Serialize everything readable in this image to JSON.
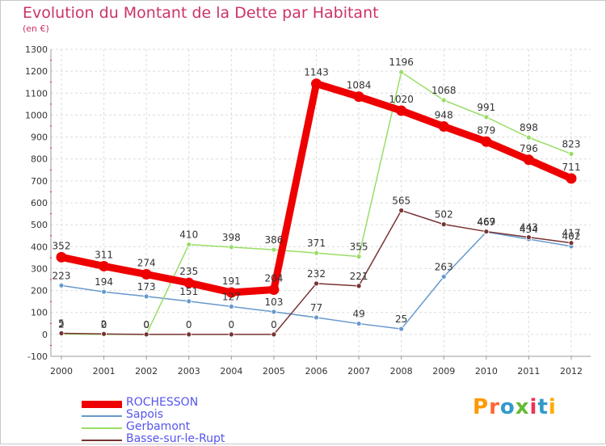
{
  "chart_data": {
    "type": "line",
    "title": "Evolution du Montant de la Dette par Habitant",
    "subtitle": "(en €)",
    "xlabel": "",
    "ylabel": "",
    "ylim": [
      -100,
      1300
    ],
    "yticks": [
      -100,
      0,
      100,
      200,
      300,
      400,
      500,
      600,
      700,
      800,
      900,
      1000,
      1100,
      1200,
      1300
    ],
    "x": [
      "2000",
      "2001",
      "2002",
      "2003",
      "2004",
      "2005",
      "2006",
      "2007",
      "2008",
      "2009",
      "2010",
      "2011",
      "2012"
    ],
    "grid": true,
    "legend_position": "bottom-left",
    "series": [
      {
        "name": "ROCHESSON",
        "color": "#ee0000",
        "emphasis": true,
        "values": [
          352,
          311,
          274,
          235,
          191,
          204,
          1143,
          1084,
          1020,
          948,
          879,
          796,
          711
        ]
      },
      {
        "name": "Sapois",
        "color": "#6699cc",
        "emphasis": false,
        "values": [
          223,
          194,
          173,
          151,
          127,
          103,
          77,
          49,
          25,
          263,
          467,
          434,
          402
        ]
      },
      {
        "name": "Gerbamont",
        "color": "#99dd66",
        "emphasis": false,
        "values": [
          2,
          0,
          0,
          410,
          398,
          386,
          371,
          355,
          1196,
          1068,
          991,
          898,
          823
        ]
      },
      {
        "name": "Basse-sur-le-Rupt",
        "color": "#773333",
        "emphasis": false,
        "values": [
          5,
          2,
          0,
          0,
          0,
          0,
          232,
          221,
          565,
          502,
          469,
          443,
          417
        ]
      }
    ]
  },
  "logo": {
    "text": "Proxiti",
    "colors": [
      "#ff9900",
      "#ff6633",
      "#3399cc",
      "#66bb33",
      "#ee3355",
      "#3399cc",
      "#ffaa00"
    ]
  }
}
